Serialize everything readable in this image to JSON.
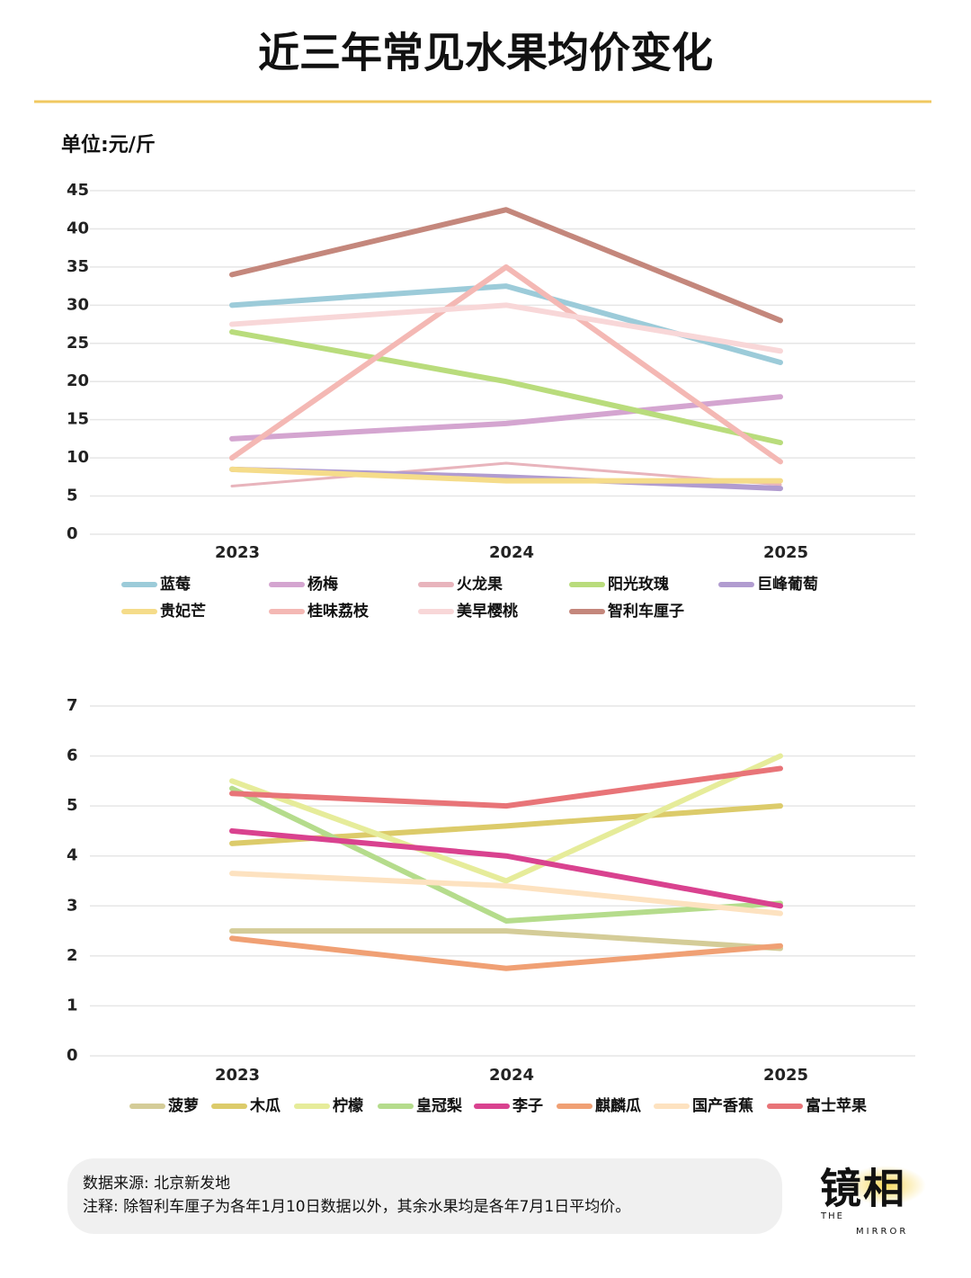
{
  "title": "近三年常见水果均价变化",
  "footer": {
    "source": "数据来源: 北京新发地",
    "note": "注释: 除智利车厘子为各年1月10日数据以外，其余水果均是各年7月1日平均价。"
  },
  "logo": {
    "name": "镜相",
    "the": "THE",
    "mirror": "MIRROR"
  },
  "chart_data": [
    {
      "type": "line",
      "y_label": "单位:元/斤",
      "categories": [
        "2023",
        "2024",
        "2025"
      ],
      "ylim": [
        0,
        45
      ],
      "yticks": [
        0,
        5,
        10,
        15,
        20,
        25,
        30,
        35,
        40,
        45
      ],
      "grid": true,
      "series": [
        {
          "name": "蓝莓",
          "color": "#9ccbd9",
          "values": [
            30,
            32.5,
            22.5
          ]
        },
        {
          "name": "杨梅",
          "color": "#d4a5d0",
          "values": [
            12.5,
            14.5,
            18
          ]
        },
        {
          "name": "火龙果",
          "color": "#e8b4bc",
          "width": 3,
          "values": [
            6.3,
            9.3,
            6.5
          ]
        },
        {
          "name": "阳光玫瑰",
          "color": "#b9dc7c",
          "values": [
            26.5,
            20,
            12
          ]
        },
        {
          "name": "巨峰葡萄",
          "color": "#b19cd0",
          "values": [
            8.5,
            7.5,
            6
          ]
        },
        {
          "name": "贵妃芒",
          "color": "#f5dc8a",
          "values": [
            8.5,
            7,
            7
          ]
        },
        {
          "name": "桂味荔枝",
          "color": "#f4b8b4",
          "values": [
            10,
            35,
            9.5
          ]
        },
        {
          "name": "美早樱桃",
          "color": "#f8d7d8",
          "values": [
            27.5,
            30,
            24
          ]
        },
        {
          "name": "智利车厘子",
          "color": "#c4877c",
          "values": [
            34,
            42.5,
            28
          ]
        }
      ]
    },
    {
      "type": "line",
      "categories": [
        "2023",
        "2024",
        "2025"
      ],
      "ylim": [
        0,
        7
      ],
      "yticks": [
        0,
        1,
        2,
        3,
        4,
        5,
        6,
        7
      ],
      "grid": true,
      "series": [
        {
          "name": "菠萝",
          "color": "#d4cc98",
          "values": [
            2.5,
            2.5,
            2.15
          ]
        },
        {
          "name": "木瓜",
          "color": "#dccb6a",
          "values": [
            4.25,
            4.6,
            5
          ]
        },
        {
          "name": "柠檬",
          "color": "#e6ec9a",
          "values": [
            5.5,
            3.5,
            6
          ]
        },
        {
          "name": "皇冠梨",
          "color": "#b5dc8c",
          "values": [
            5.35,
            2.7,
            3.05
          ]
        },
        {
          "name": "李子",
          "color": "#d9428f",
          "values": [
            4.5,
            4,
            3
          ]
        },
        {
          "name": "麒麟瓜",
          "color": "#f0a074",
          "values": [
            2.35,
            1.75,
            2.2
          ]
        },
        {
          "name": "国产香蕉",
          "color": "#fde2c0",
          "values": [
            3.65,
            3.4,
            2.85
          ]
        },
        {
          "name": "富士苹果",
          "color": "#e87478",
          "values": [
            5.25,
            5,
            5.75
          ]
        }
      ]
    }
  ]
}
